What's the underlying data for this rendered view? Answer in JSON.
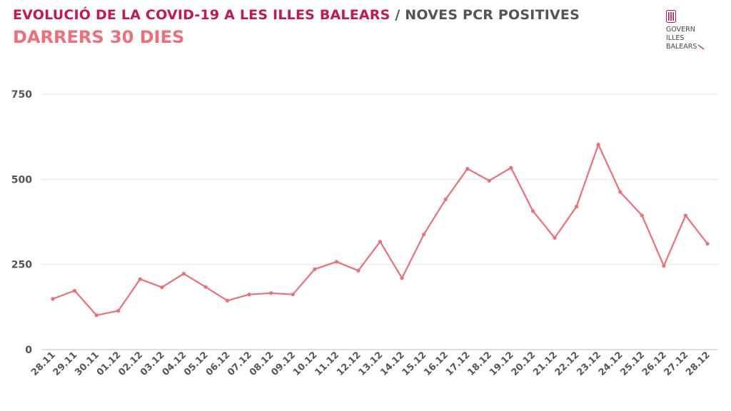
{
  "header": {
    "title_main": "EVOLUCIÓ DE LA COVID-19 A LES ILLES BALEARS",
    "title_sep": " / ",
    "title_sub": "NOVES PCR POSITIVES",
    "subtitle": "DARRERS 30 DIES"
  },
  "logo": {
    "line1": "GOVERN",
    "line2": "ILLES",
    "line3": "BALEARS"
  },
  "colors": {
    "title": "#c8174f",
    "subtitle": "#ef6f78",
    "line": "#ef6f78",
    "grid": "#e6e6e6",
    "text": "#555555"
  },
  "chart_data": {
    "type": "line",
    "categories": [
      "28.11",
      "29.11",
      "30.11",
      "01.12",
      "02.12",
      "03.12",
      "04.12",
      "05.12",
      "06.12",
      "07.12",
      "08.12",
      "09.12",
      "10.12",
      "11.12",
      "12.12",
      "13.12",
      "14.12",
      "15.12",
      "16.12",
      "17.12",
      "18.12",
      "19.12",
      "20.12",
      "21.12",
      "22.12",
      "23.12",
      "24.12",
      "25.12",
      "26.12",
      "27.12",
      "28.12"
    ],
    "series": [
      {
        "values": [
          149,
          173,
          101,
          114,
          207,
          183,
          223,
          184,
          144,
          162,
          166,
          162,
          236,
          258,
          232,
          317,
          210,
          338,
          441,
          531,
          496,
          534,
          407,
          328,
          420,
          602,
          463,
          394,
          246,
          394,
          311
        ]
      }
    ],
    "y_ticks": [
      0,
      250,
      500,
      750
    ],
    "ylim": [
      0,
      750
    ],
    "grid": true,
    "legend": "none"
  }
}
